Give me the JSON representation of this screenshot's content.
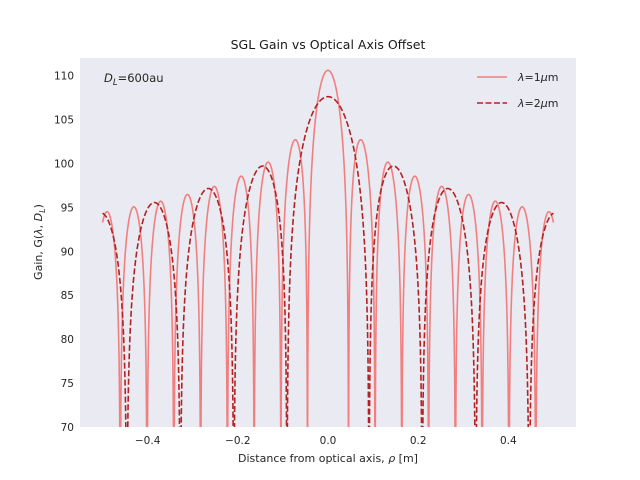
{
  "chart_data": {
    "type": "line",
    "title": "SGL Gain vs Optical Axis Offset",
    "xlabel": "Distance from optical axis, ρ [m]",
    "ylabel": "Gain, G(λ, D_L)",
    "ylabel_parts": {
      "main": "Gain, G(",
      "lambda": "λ",
      "sep": ", ",
      "D": "D",
      "sub": "L",
      "close": ")"
    },
    "xlabel_parts": {
      "main": "Distance from optical axis, ",
      "rho": "ρ",
      "unit": " [m]"
    },
    "xlim": [
      -0.55,
      0.55
    ],
    "ylim": [
      70,
      112
    ],
    "x_ticks": [
      -0.4,
      -0.2,
      0.0,
      0.2,
      0.4
    ],
    "x_tick_labels": [
      "−0.4",
      "−0.2",
      "0.0",
      "0.2",
      "0.4"
    ],
    "y_ticks": [
      70,
      75,
      80,
      85,
      90,
      95,
      100,
      105,
      110
    ],
    "y_tick_labels": [
      "70",
      "75",
      "80",
      "85",
      "90",
      "95",
      "100",
      "105",
      "110"
    ],
    "grid": false,
    "legend_position": "top-right",
    "annotation": {
      "D": "D",
      "sub": "L",
      "rest": "=600au",
      "position": "top-left"
    },
    "x_range": [
      -0.5,
      0.5
    ],
    "series": [
      {
        "name": "λ=1μm",
        "legend_parts": {
          "lambda": "λ",
          "eq": "=1",
          "mu": "μ",
          "unit": "m"
        },
        "color": "#f08080",
        "dash": "solid",
        "peak_gain": 110.6,
        "first_null_offset": 0.0455
      },
      {
        "name": "λ=2μm",
        "legend_parts": {
          "lambda": "λ",
          "eq": "=2",
          "mu": "μ",
          "unit": "m"
        },
        "color": "#b22222",
        "dash": "dashed",
        "peak_gain": 107.6,
        "first_null_offset": 0.091
      }
    ]
  },
  "colors": {
    "axes_background": "#eaeaf2",
    "page_background": "#ffffff"
  }
}
